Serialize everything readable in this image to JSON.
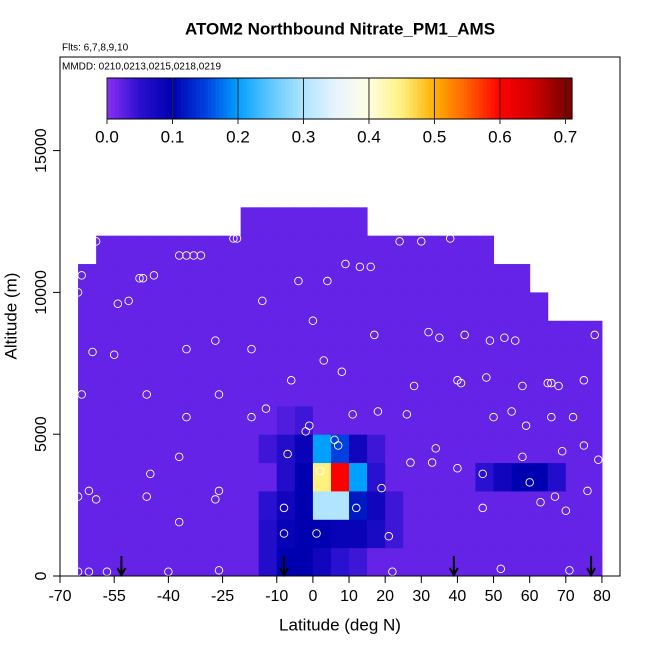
{
  "chart_data": {
    "type": "heatmap",
    "title": "ATOM2 Northbound Nitrate_PM1_AMS",
    "flights_note": "Flts: 6,7,8,9,10",
    "dates_note": "MMDD: 0210,0213,0215,0218,0219",
    "x_label": "Latitude (deg N)",
    "y_label": "Altitude (m)",
    "xlim": [
      -70,
      85
    ],
    "ylim": [
      0,
      18300
    ],
    "xticks": [
      -70,
      -55,
      -40,
      -25,
      -10,
      0,
      10,
      20,
      30,
      40,
      50,
      60,
      70,
      80
    ],
    "yticks": [
      0,
      5000,
      10000,
      15000
    ],
    "zlim": [
      0,
      0.71
    ],
    "zticks": [
      {
        "value": 0,
        "label": "0.0"
      },
      0.1,
      0.2,
      0.3,
      0.4,
      0.5,
      0.6,
      0.7
    ],
    "colors": [
      "#8a30f5",
      "#2a10d0",
      "#0000b0",
      "#0040e0",
      "#00a0ff",
      "#60c8ff",
      "#b0e4ff",
      "#e8f4ff",
      "#ffffe0",
      "#fff080",
      "#ffb000",
      "#ff6000",
      "#ff0000",
      "#d00000",
      "#800000"
    ],
    "x_bins": [
      -65,
      -60,
      -55,
      -50,
      -45,
      -40,
      -35,
      -30,
      -25,
      -20,
      -15,
      -10,
      -5,
      0,
      5,
      10,
      15,
      20,
      25,
      30,
      35,
      40,
      45,
      50,
      55,
      60,
      65,
      70,
      75,
      80
    ],
    "y_bins": [
      0,
      1000,
      2000,
      3000,
      4000,
      5000,
      6000,
      7000,
      8000,
      9000,
      10000,
      11000,
      12000,
      13000
    ],
    "z": [
      [
        0.02,
        0.02,
        0.02,
        0.02,
        0.02,
        0.02,
        0.02,
        0.02,
        0.02,
        0.02,
        0.06,
        0.1,
        0.1,
        0.08,
        0.05,
        0.04,
        0.02,
        0.02,
        0.02,
        0.02,
        0.02,
        0.02,
        0.02,
        0.02,
        0.02,
        0.02,
        0.02,
        0.02,
        0.02
      ],
      [
        0.02,
        0.02,
        0.02,
        0.02,
        0.02,
        0.02,
        0.02,
        0.02,
        0.02,
        0.02,
        0.06,
        0.09,
        0.1,
        0.1,
        0.09,
        0.09,
        0.07,
        0.04,
        0.02,
        0.02,
        0.02,
        0.02,
        0.02,
        0.02,
        0.02,
        0.02,
        0.02,
        0.02,
        0.02
      ],
      [
        0.02,
        0.02,
        0.02,
        0.02,
        0.02,
        0.02,
        0.02,
        0.02,
        0.02,
        0.02,
        0.05,
        0.08,
        0.1,
        0.3,
        0.3,
        0.12,
        0.08,
        0.04,
        0.02,
        0.02,
        0.02,
        0.02,
        0.02,
        0.02,
        0.02,
        0.02,
        0.02,
        0.02,
        0.02
      ],
      [
        0.02,
        0.02,
        0.02,
        0.02,
        0.02,
        0.02,
        0.02,
        0.02,
        0.02,
        0.02,
        0.02,
        0.06,
        0.1,
        0.45,
        0.6,
        0.2,
        0.05,
        0.02,
        0.02,
        0.02,
        0.02,
        0.02,
        0.05,
        0.08,
        0.1,
        0.1,
        0.06,
        0.02,
        0.02
      ],
      [
        0.02,
        0.02,
        0.02,
        0.02,
        0.02,
        0.02,
        0.02,
        0.02,
        0.02,
        0.02,
        0.04,
        0.06,
        0.09,
        0.2,
        0.15,
        0.08,
        0.04,
        0.02,
        0.02,
        0.02,
        0.02,
        0.02,
        0.02,
        0.02,
        0.02,
        0.02,
        0.02,
        0.02,
        0.02
      ],
      [
        0.02,
        0.02,
        0.02,
        0.02,
        0.02,
        0.02,
        0.02,
        0.02,
        0.02,
        0.02,
        0.02,
        0.03,
        0.04,
        0.02,
        0.02,
        0.02,
        0.02,
        0.02,
        0.02,
        0.02,
        0.02,
        0.02,
        0.02,
        0.02,
        0.02,
        0.02,
        0.02,
        0.02,
        0.02
      ],
      [
        0.02,
        0.02,
        0.02,
        0.02,
        0.02,
        0.02,
        0.02,
        0.02,
        0.02,
        0.02,
        0.02,
        0.02,
        0.02,
        0.02,
        0.02,
        0.02,
        0.02,
        0.02,
        0.02,
        0.02,
        0.02,
        0.02,
        0.02,
        0.02,
        0.02,
        0.02,
        0.02,
        0.02,
        0.02
      ],
      [
        0.02,
        0.02,
        0.02,
        0.02,
        0.02,
        0.02,
        0.02,
        0.02,
        0.02,
        0.02,
        0.02,
        0.02,
        0.02,
        0.02,
        0.02,
        0.02,
        0.02,
        0.02,
        0.02,
        0.02,
        0.02,
        0.02,
        0.02,
        0.02,
        0.02,
        0.02,
        0.02,
        0.02,
        0.02
      ],
      [
        0.02,
        0.02,
        0.02,
        0.02,
        0.02,
        0.02,
        0.02,
        0.02,
        0.02,
        0.02,
        0.02,
        0.02,
        0.02,
        0.02,
        0.02,
        0.02,
        0.02,
        0.02,
        0.02,
        0.02,
        0.02,
        0.02,
        0.02,
        0.02,
        0.02,
        0.02,
        0.02,
        0.02,
        0.02
      ],
      [
        0.02,
        0.02,
        0.02,
        0.02,
        0.02,
        0.02,
        0.02,
        0.02,
        0.02,
        0.02,
        0.02,
        0.02,
        0.02,
        0.02,
        0.02,
        0.02,
        0.02,
        0.02,
        0.02,
        0.02,
        0.02,
        0.02,
        0.02,
        0.02,
        0.02,
        0.02,
        null,
        null,
        null
      ],
      [
        0.02,
        0.02,
        0.02,
        0.02,
        0.02,
        0.02,
        0.02,
        0.02,
        0.02,
        0.02,
        0.02,
        0.02,
        0.02,
        0.02,
        0.02,
        0.02,
        0.02,
        0.02,
        0.02,
        0.02,
        0.02,
        0.02,
        0.02,
        0.02,
        0.02,
        null,
        null,
        null,
        null
      ],
      [
        null,
        0.02,
        0.02,
        0.02,
        0.02,
        0.02,
        0.02,
        0.02,
        0.02,
        0.02,
        0.02,
        0.02,
        0.02,
        0.02,
        0.02,
        0.02,
        0.02,
        0.02,
        0.02,
        0.02,
        0.02,
        0.02,
        0.02,
        null,
        null,
        null,
        null,
        null,
        null
      ],
      [
        null,
        null,
        null,
        null,
        null,
        null,
        null,
        null,
        null,
        0.02,
        0.02,
        0.02,
        0.02,
        0.02,
        0.02,
        0.02,
        null,
        null,
        null,
        null,
        null,
        null,
        null,
        null,
        null,
        null,
        null,
        null,
        null
      ]
    ],
    "points": {
      "x": [
        -65,
        -64,
        -62,
        -60,
        -61,
        -64,
        -62,
        -65,
        -60,
        -65,
        -62,
        -57,
        -55,
        -54,
        -51,
        -48,
        -47,
        -44,
        -46,
        -45,
        -46,
        -40,
        -37,
        -35,
        -33,
        -31,
        -35,
        -35,
        -37,
        -37,
        -27,
        -26,
        -27,
        -26,
        -26,
        -22,
        -21,
        -17,
        -17,
        -13,
        -14,
        -8,
        -8,
        -7,
        -6,
        -4,
        -2,
        -1,
        0,
        1,
        2,
        3,
        4,
        6,
        7,
        8,
        9,
        11,
        12,
        13,
        16,
        17,
        18,
        19,
        21,
        22,
        24,
        26,
        27,
        28,
        30,
        32,
        33,
        34,
        35,
        38,
        40,
        40,
        41,
        42,
        47,
        47,
        48,
        49,
        50,
        52,
        52,
        53,
        55,
        56,
        58,
        58,
        59,
        60,
        63,
        65,
        66,
        66,
        67,
        68,
        69,
        70,
        71,
        72,
        75,
        75,
        76,
        78,
        79
      ],
      "y": [
        10000,
        10600,
        11200,
        11800,
        7900,
        6400,
        3000,
        2800,
        2700,
        150,
        150,
        150,
        7800,
        9600,
        9700,
        10500,
        10500,
        10600,
        6400,
        3600,
        2800,
        150,
        11300,
        11300,
        11300,
        11300,
        8000,
        5600,
        4200,
        1900,
        8300,
        6400,
        2700,
        3000,
        200,
        11900,
        11900,
        8000,
        5600,
        5900,
        9700,
        1500,
        2400,
        4300,
        6900,
        10400,
        5100,
        5300,
        9000,
        1500,
        3700,
        7600,
        10400,
        4800,
        4600,
        7200,
        11000,
        5700,
        2400,
        10900,
        10900,
        8500,
        5800,
        3100,
        1400,
        150,
        11800,
        5700,
        4000,
        6700,
        11800,
        8600,
        4000,
        4500,
        8400,
        11900,
        6900,
        3800,
        6800,
        8500,
        3600,
        2400,
        7000,
        8300,
        5600,
        11700,
        250,
        8400,
        5800,
        8300,
        6700,
        4200,
        5300,
        3300,
        2600,
        6800,
        6800,
        5600,
        2800,
        6700,
        4400,
        2300,
        200,
        5600,
        6900,
        4600,
        3000,
        8500,
        4100
      ]
    },
    "arrows_x": [
      -53,
      -8,
      39,
      77
    ]
  }
}
